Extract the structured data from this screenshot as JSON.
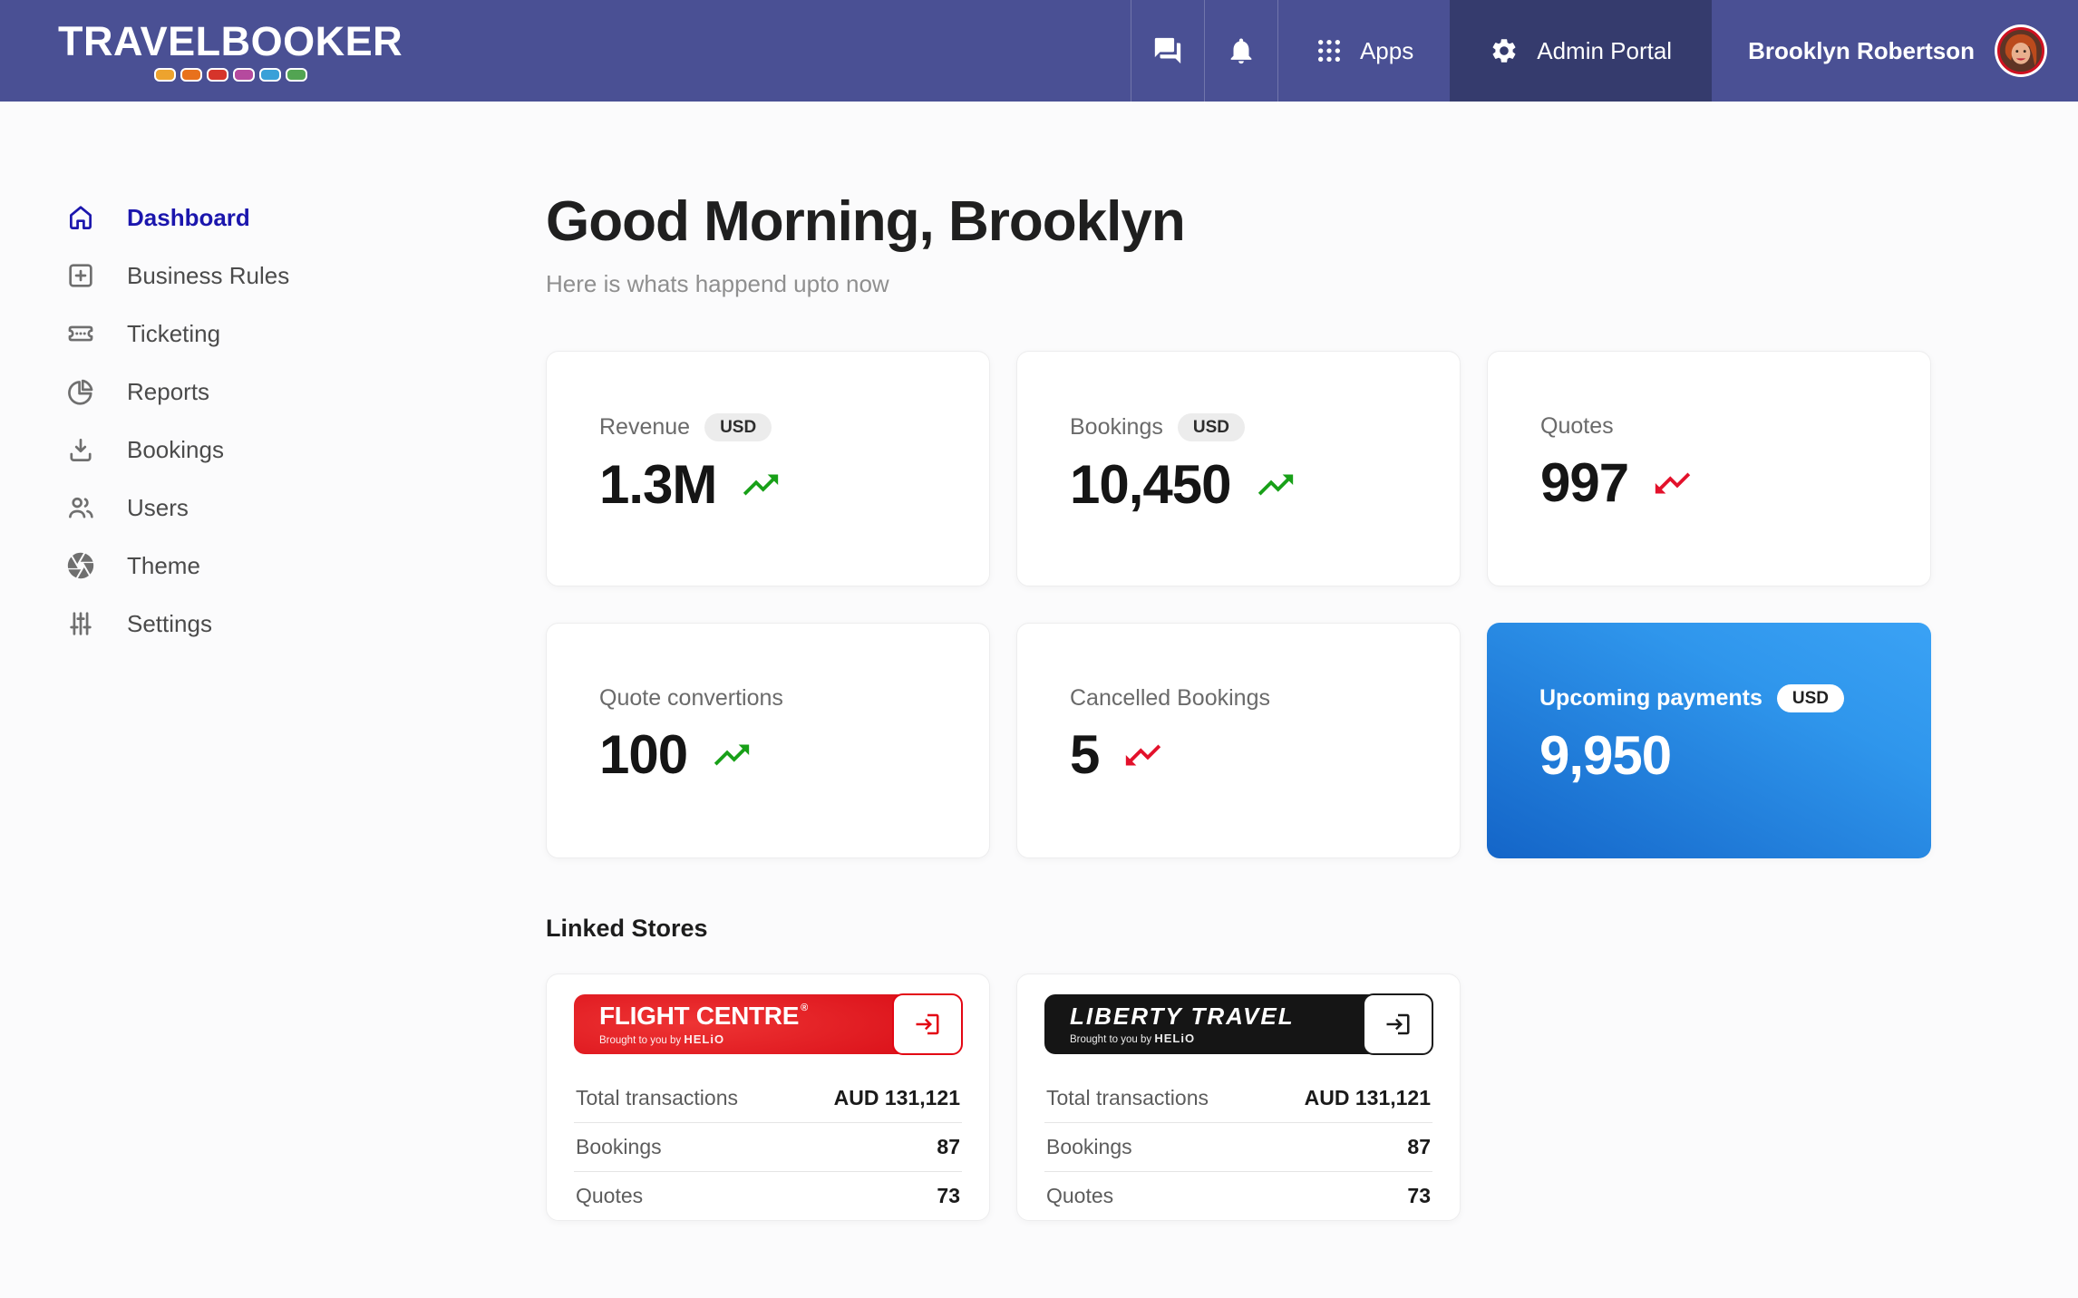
{
  "colors": {
    "navbar_bg": "#4a5094",
    "navbar_active_bg": "#353b6d",
    "sidebar_active": "#1b16ad",
    "positive_green": "#18a018",
    "negative_red": "#e3112b",
    "upcoming_card_blue_gradient": [
      "#1465c8",
      "#3aa2f5"
    ],
    "flight_centre_red": "#da1019",
    "liberty_travel_black": "#151515"
  },
  "header": {
    "logo_text": "TRAVELBOOKER",
    "logo_dots": [
      "#eda32e",
      "#e8711c",
      "#d6342b",
      "#b54a9e",
      "#39a0d8",
      "#52a452"
    ],
    "icons": [
      "chat-icon",
      "notifications-bell-icon",
      "apps-grid-icon",
      "settings-gear-icon"
    ],
    "apps_label": "Apps",
    "admin_portal_label": "Admin Portal",
    "user_name": "Brooklyn Robertson"
  },
  "sidebar": {
    "items": [
      {
        "label": "Dashboard",
        "icon": "home-icon",
        "active": true
      },
      {
        "label": "Business Rules",
        "icon": "add-box-icon",
        "active": false
      },
      {
        "label": "Ticketing",
        "icon": "ticket-icon",
        "active": false
      },
      {
        "label": "Reports",
        "icon": "pie-chart-icon",
        "active": false
      },
      {
        "label": "Bookings",
        "icon": "download-icon",
        "active": false
      },
      {
        "label": "Users",
        "icon": "users-icon",
        "active": false
      },
      {
        "label": "Theme",
        "icon": "aperture-icon",
        "active": false
      },
      {
        "label": "Settings",
        "icon": "sliders-icon",
        "active": false
      }
    ]
  },
  "main": {
    "greeting": "Good Morning, Brooklyn",
    "subtitle": "Here is whats happend upto now",
    "stat_cards": [
      {
        "label": "Revenue",
        "badge": "USD",
        "value": "1.3M",
        "trend": "up"
      },
      {
        "label": "Bookings",
        "badge": "USD",
        "value": "10,450",
        "trend": "up"
      },
      {
        "label": "Quotes",
        "badge": "",
        "value": "997",
        "trend": "down"
      },
      {
        "label": "Quote convertions",
        "badge": "",
        "value": "100",
        "trend": "up"
      },
      {
        "label": "Cancelled Bookings",
        "badge": "",
        "value": "5",
        "trend": "down"
      },
      {
        "label": "Upcoming payments",
        "badge": "USD",
        "value": "9,950",
        "trend": "none"
      }
    ],
    "linked_stores_title": "Linked Stores",
    "stores": [
      {
        "name": "FLIGHT CENTRE",
        "mark": "®",
        "tagline": "Brought to you by",
        "tagline_brand": "HELiO",
        "rows": [
          {
            "label": "Total transactions",
            "value": "AUD 131,121"
          },
          {
            "label": "Bookings",
            "value": "87"
          },
          {
            "label": "Quotes",
            "value": "73"
          }
        ]
      },
      {
        "name": "LIBERTY TRAVEL",
        "mark": "",
        "tagline": "Brought to you by",
        "tagline_brand": "HELiO",
        "rows": [
          {
            "label": "Total transactions",
            "value": "AUD 131,121"
          },
          {
            "label": "Bookings",
            "value": "87"
          },
          {
            "label": "Quotes",
            "value": "73"
          }
        ]
      }
    ]
  }
}
